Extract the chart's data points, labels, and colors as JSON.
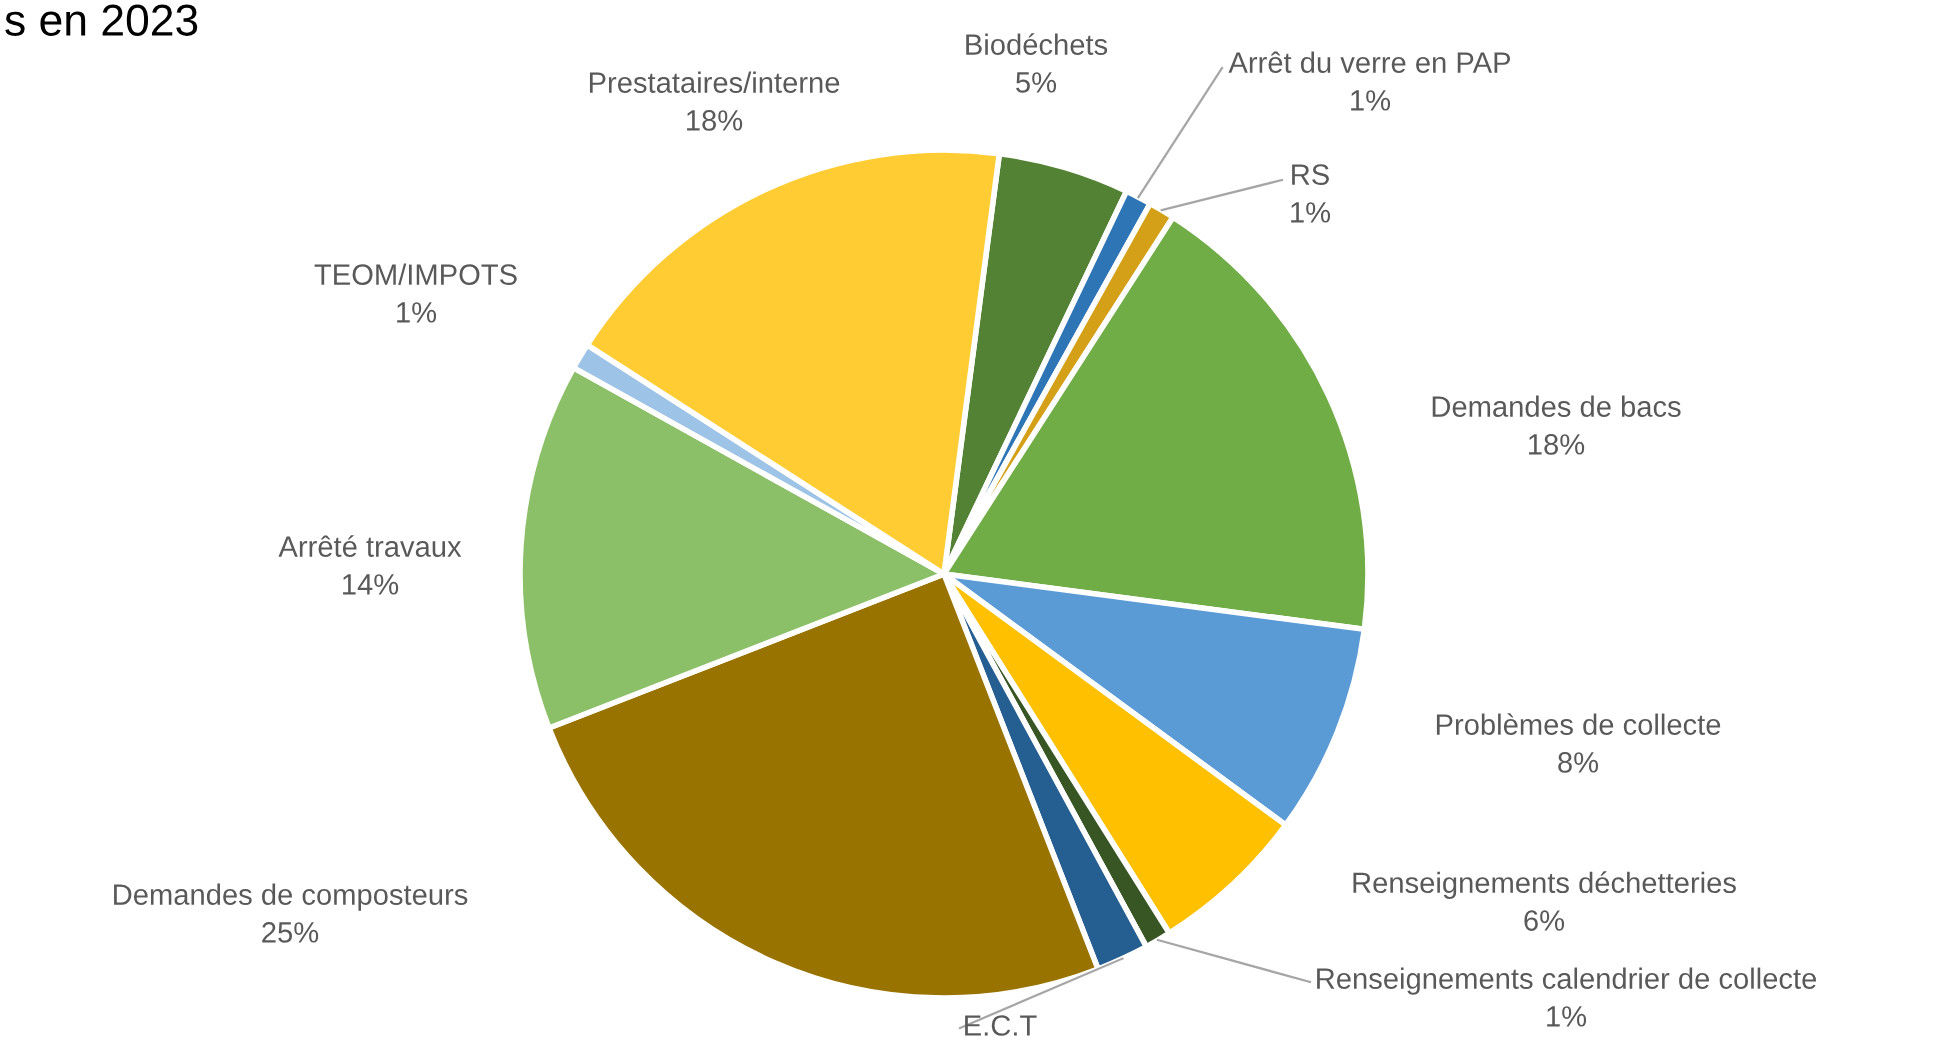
{
  "chart_data": {
    "type": "pie",
    "title": "s en 2023",
    "categories": [
      "Biodéchets",
      "Arrêt du verre en PAP",
      "RS",
      "Demandes de bacs",
      "Problèmes de collecte",
      "Renseignements déchetteries",
      "Renseignements calendrier de collecte",
      "E.C.T",
      "Demandes de composteurs",
      "Arrêté travaux",
      "TEOM/IMPOTS",
      "Prestataires/interne"
    ],
    "values": [
      5,
      1,
      1,
      18,
      8,
      6,
      1,
      2,
      25,
      14,
      1,
      18
    ],
    "value_labels": [
      "5%",
      "1%",
      "1%",
      "18%",
      "8%",
      "6%",
      "1%",
      null,
      "25%",
      "14%",
      "1%",
      "18%"
    ],
    "colors": [
      "#548235",
      "#2e75b6",
      "#d4a017",
      "#70ad47",
      "#5b9bd5",
      "#ffc000",
      "#375623",
      "#255e91",
      "#997300",
      "#8cc068",
      "#9dc3e6",
      "#ffcd33"
    ],
    "legend": false
  }
}
